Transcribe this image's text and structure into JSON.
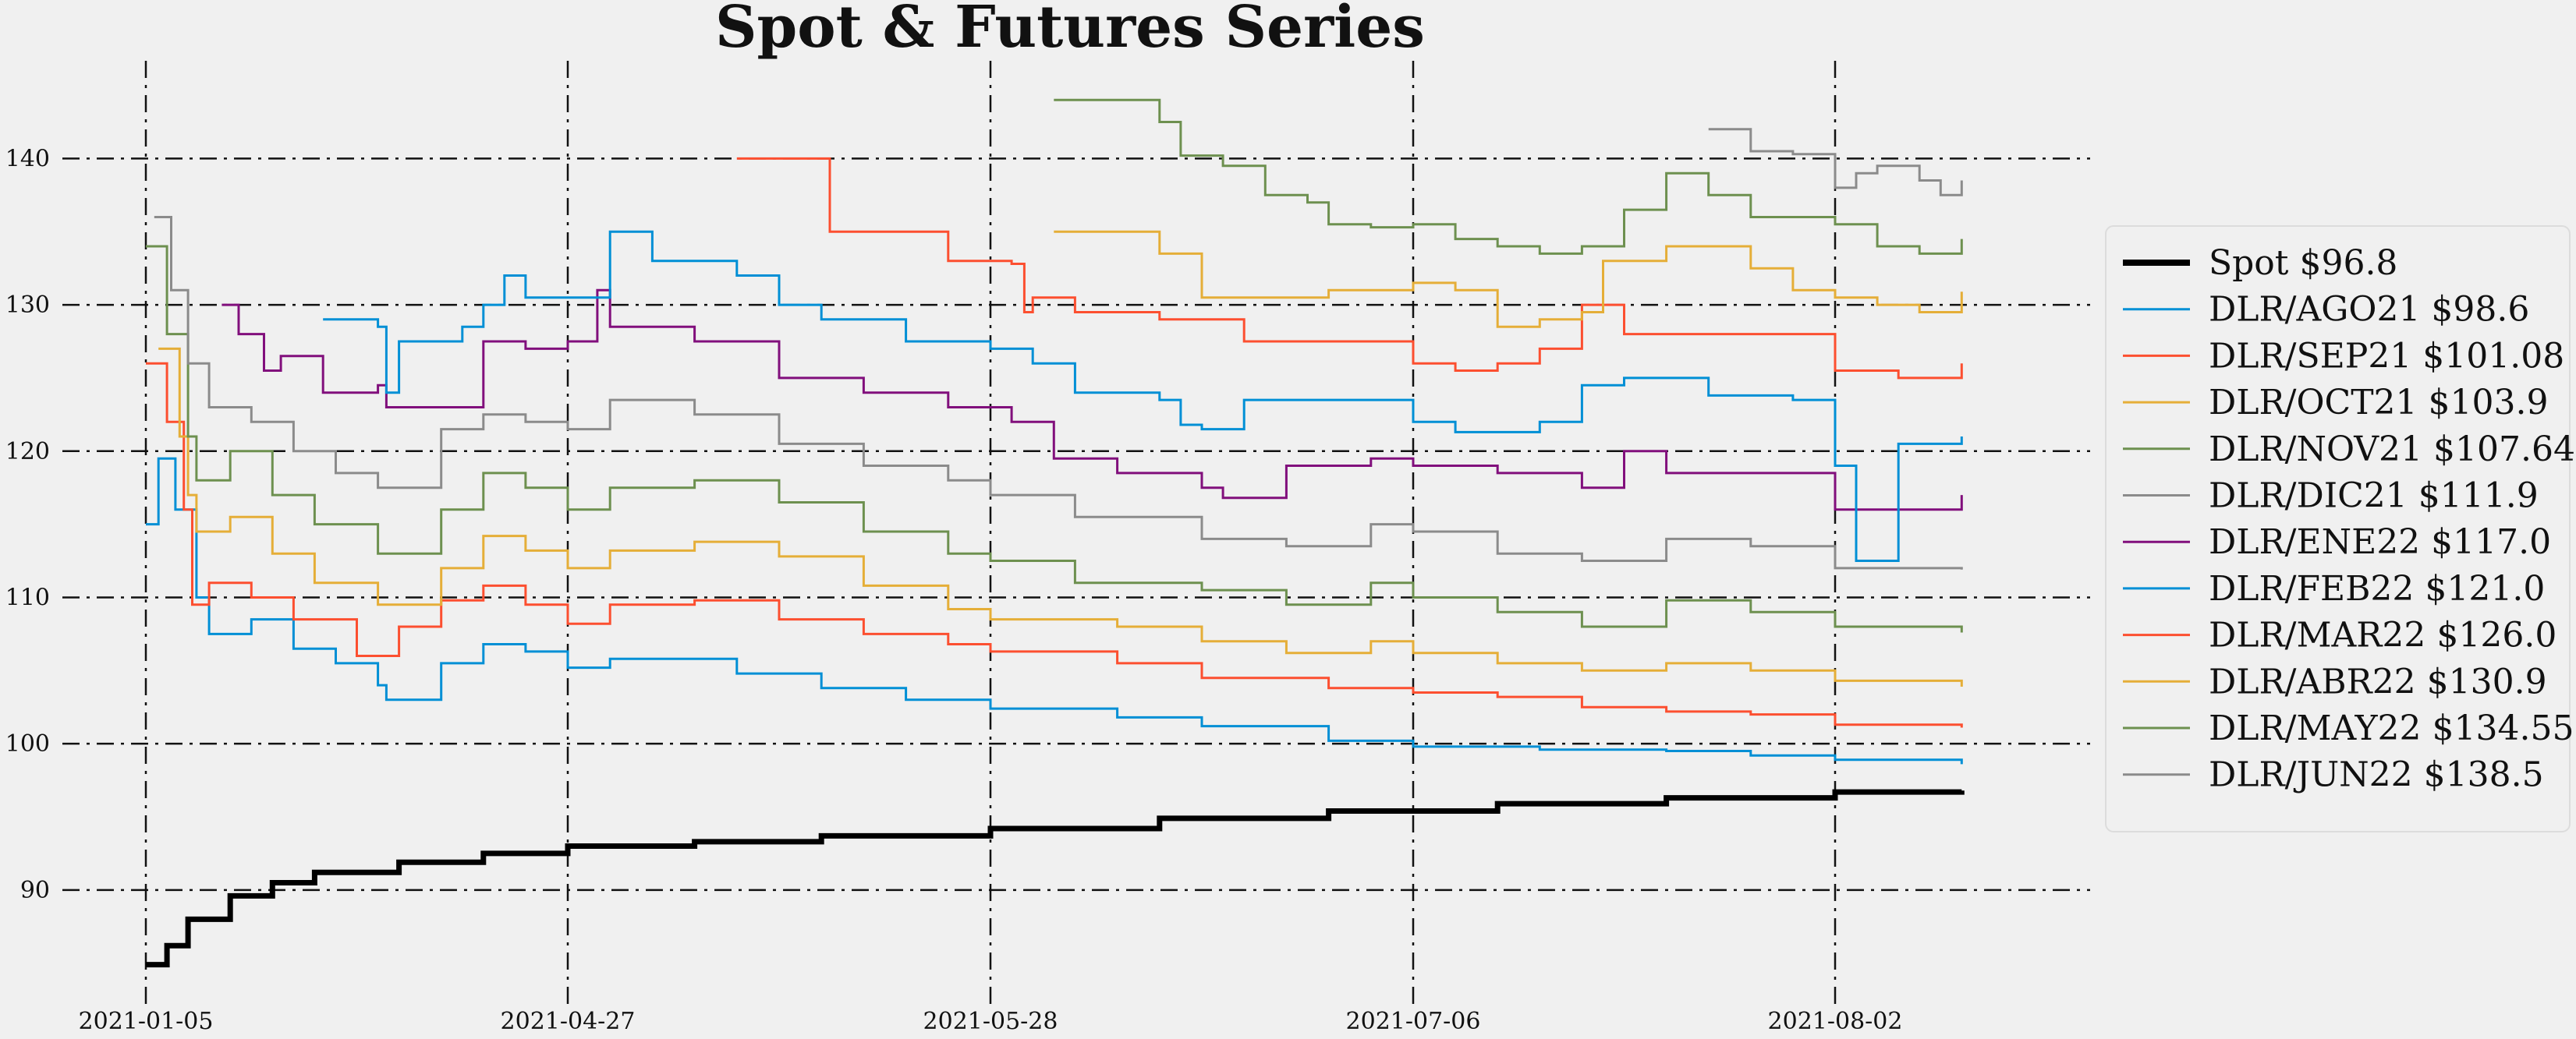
{
  "chart_data": {
    "type": "line",
    "title": "Spot & Futures Series",
    "xlabel": "",
    "ylabel": "",
    "x_ticks": [
      "2021-01-05",
      "2021-04-27",
      "2021-05-28",
      "2021-07-06",
      "2021-08-02"
    ],
    "y_ticks": [
      90,
      100,
      110,
      120,
      130,
      140
    ],
    "ylim": [
      82,
      147
    ],
    "x_domain": [
      0,
      4.35
    ],
    "grid": true,
    "legend_position": "right",
    "series": [
      {
        "name": "Spot $96.8",
        "color": "#000000",
        "bold": true,
        "points": [
          [
            0,
            84.9
          ],
          [
            0.05,
            86.2
          ],
          [
            0.1,
            88.0
          ],
          [
            0.2,
            89.6
          ],
          [
            0.3,
            90.5
          ],
          [
            0.4,
            91.2
          ],
          [
            0.6,
            91.9
          ],
          [
            0.8,
            92.5
          ],
          [
            1.0,
            93.0
          ],
          [
            1.3,
            93.3
          ],
          [
            1.6,
            93.7
          ],
          [
            2.0,
            94.2
          ],
          [
            2.4,
            94.9
          ],
          [
            2.8,
            95.4
          ],
          [
            3.2,
            95.9
          ],
          [
            3.6,
            96.3
          ],
          [
            4.0,
            96.7
          ],
          [
            4.3,
            96.8
          ]
        ]
      },
      {
        "name": "DLR/AGO21 $98.6",
        "color": "#008fd5",
        "points": [
          [
            0,
            115
          ],
          [
            0.03,
            119.5
          ],
          [
            0.07,
            116
          ],
          [
            0.12,
            110
          ],
          [
            0.15,
            107.5
          ],
          [
            0.25,
            108.5
          ],
          [
            0.35,
            106.5
          ],
          [
            0.45,
            105.5
          ],
          [
            0.55,
            104
          ],
          [
            0.57,
            103
          ],
          [
            0.7,
            105.5
          ],
          [
            0.8,
            106.8
          ],
          [
            0.9,
            106.3
          ],
          [
            1.0,
            105.2
          ],
          [
            1.1,
            105.8
          ],
          [
            1.4,
            104.8
          ],
          [
            1.6,
            103.8
          ],
          [
            1.8,
            103.0
          ],
          [
            2.0,
            102.4
          ],
          [
            2.3,
            101.8
          ],
          [
            2.5,
            101.2
          ],
          [
            2.8,
            100.2
          ],
          [
            3.0,
            99.8
          ],
          [
            3.3,
            99.6
          ],
          [
            3.6,
            99.5
          ],
          [
            3.8,
            99.2
          ],
          [
            4.0,
            98.9
          ],
          [
            4.3,
            98.6
          ]
        ]
      },
      {
        "name": "DLR/SEP21 $101.08",
        "color": "#fc4f30",
        "points": [
          [
            0,
            126
          ],
          [
            0.05,
            122
          ],
          [
            0.09,
            116
          ],
          [
            0.11,
            109.5
          ],
          [
            0.15,
            111
          ],
          [
            0.25,
            110
          ],
          [
            0.35,
            108.5
          ],
          [
            0.5,
            106
          ],
          [
            0.6,
            108
          ],
          [
            0.7,
            109.8
          ],
          [
            0.8,
            110.8
          ],
          [
            0.9,
            109.5
          ],
          [
            1.0,
            108.2
          ],
          [
            1.1,
            109.5
          ],
          [
            1.3,
            109.8
          ],
          [
            1.5,
            108.5
          ],
          [
            1.7,
            107.5
          ],
          [
            1.9,
            106.8
          ],
          [
            2.0,
            106.3
          ],
          [
            2.3,
            105.5
          ],
          [
            2.5,
            104.5
          ],
          [
            2.8,
            103.8
          ],
          [
            3.0,
            103.5
          ],
          [
            3.2,
            103.2
          ],
          [
            3.4,
            102.5
          ],
          [
            3.6,
            102.2
          ],
          [
            3.8,
            102.0
          ],
          [
            4.0,
            101.3
          ],
          [
            4.3,
            101.1
          ]
        ]
      },
      {
        "name": "DLR/OCT21 $103.9",
        "color": "#e5ae38",
        "points": [
          [
            0.03,
            127
          ],
          [
            0.08,
            121
          ],
          [
            0.1,
            117
          ],
          [
            0.12,
            114.5
          ],
          [
            0.2,
            115.5
          ],
          [
            0.3,
            113
          ],
          [
            0.4,
            111
          ],
          [
            0.55,
            109.5
          ],
          [
            0.7,
            112
          ],
          [
            0.8,
            114.2
          ],
          [
            0.9,
            113.2
          ],
          [
            1.0,
            112.0
          ],
          [
            1.1,
            113.2
          ],
          [
            1.3,
            113.8
          ],
          [
            1.5,
            112.8
          ],
          [
            1.7,
            110.8
          ],
          [
            1.9,
            109.2
          ],
          [
            2.0,
            108.5
          ],
          [
            2.3,
            108.0
          ],
          [
            2.5,
            107.0
          ],
          [
            2.7,
            106.2
          ],
          [
            2.9,
            107.0
          ],
          [
            3.0,
            106.2
          ],
          [
            3.2,
            105.5
          ],
          [
            3.4,
            105.0
          ],
          [
            3.6,
            105.5
          ],
          [
            3.8,
            105.0
          ],
          [
            4.0,
            104.3
          ],
          [
            4.3,
            103.9
          ]
        ]
      },
      {
        "name": "DLR/NOV21 $107.64",
        "color": "#6d904f",
        "points": [
          [
            0.0,
            134
          ],
          [
            0.05,
            128
          ],
          [
            0.1,
            121
          ],
          [
            0.12,
            118
          ],
          [
            0.2,
            120
          ],
          [
            0.3,
            117
          ],
          [
            0.4,
            115
          ],
          [
            0.55,
            113
          ],
          [
            0.7,
            116
          ],
          [
            0.8,
            118.5
          ],
          [
            0.9,
            117.5
          ],
          [
            1.0,
            116
          ],
          [
            1.1,
            117.5
          ],
          [
            1.3,
            118
          ],
          [
            1.5,
            116.5
          ],
          [
            1.7,
            114.5
          ],
          [
            1.9,
            113
          ],
          [
            2.0,
            112.5
          ],
          [
            2.2,
            111
          ],
          [
            2.5,
            110.5
          ],
          [
            2.7,
            109.5
          ],
          [
            2.9,
            111
          ],
          [
            3.0,
            110
          ],
          [
            3.2,
            109
          ],
          [
            3.4,
            108
          ],
          [
            3.6,
            109.8
          ],
          [
            3.8,
            109
          ],
          [
            4.0,
            108
          ],
          [
            4.3,
            107.6
          ]
        ]
      },
      {
        "name": "DLR/DIC21 $111.9",
        "color": "#8b8b8b",
        "points": [
          [
            0.02,
            136
          ],
          [
            0.06,
            131
          ],
          [
            0.1,
            126
          ],
          [
            0.15,
            123
          ],
          [
            0.25,
            122
          ],
          [
            0.35,
            120
          ],
          [
            0.45,
            118.5
          ],
          [
            0.55,
            117.5
          ],
          [
            0.7,
            121.5
          ],
          [
            0.8,
            122.5
          ],
          [
            0.9,
            122
          ],
          [
            1.0,
            121.5
          ],
          [
            1.1,
            123.5
          ],
          [
            1.3,
            122.5
          ],
          [
            1.5,
            120.5
          ],
          [
            1.7,
            119
          ],
          [
            1.9,
            118
          ],
          [
            2.0,
            117
          ],
          [
            2.2,
            115.5
          ],
          [
            2.5,
            114
          ],
          [
            2.7,
            113.5
          ],
          [
            2.9,
            115
          ],
          [
            3.0,
            114.5
          ],
          [
            3.2,
            113
          ],
          [
            3.4,
            112.5
          ],
          [
            3.6,
            114
          ],
          [
            3.8,
            113.5
          ],
          [
            4.0,
            112
          ],
          [
            4.3,
            111.9
          ]
        ]
      },
      {
        "name": "DLR/ENE22 $117.0",
        "color": "#810f7c",
        "points": [
          [
            0.18,
            130
          ],
          [
            0.22,
            128
          ],
          [
            0.28,
            125.5
          ],
          [
            0.32,
            126.5
          ],
          [
            0.42,
            124
          ],
          [
            0.55,
            124.5
          ],
          [
            0.57,
            123
          ],
          [
            0.8,
            127.5
          ],
          [
            0.9,
            127
          ],
          [
            1.0,
            127.5
          ],
          [
            1.07,
            131
          ],
          [
            1.1,
            128.5
          ],
          [
            1.3,
            127.5
          ],
          [
            1.5,
            125
          ],
          [
            1.7,
            124
          ],
          [
            1.9,
            123
          ],
          [
            2.05,
            122
          ],
          [
            2.15,
            119.5
          ],
          [
            2.3,
            118.5
          ],
          [
            2.5,
            117.5
          ],
          [
            2.55,
            116.8
          ],
          [
            2.7,
            119
          ],
          [
            2.9,
            119.5
          ],
          [
            3.0,
            119
          ],
          [
            3.2,
            118.5
          ],
          [
            3.4,
            117.5
          ],
          [
            3.5,
            120
          ],
          [
            3.6,
            118.5
          ],
          [
            3.8,
            118.5
          ],
          [
            4.0,
            116
          ],
          [
            4.3,
            117.0
          ]
        ]
      },
      {
        "name": "DLR/FEB22 $121.0",
        "color": "#008fd5",
        "points": [
          [
            0.42,
            129
          ],
          [
            0.55,
            128.5
          ],
          [
            0.57,
            124
          ],
          [
            0.6,
            127.5
          ],
          [
            0.75,
            128.5
          ],
          [
            0.8,
            130
          ],
          [
            0.85,
            132
          ],
          [
            0.9,
            130.5
          ],
          [
            1.0,
            130.5
          ],
          [
            1.1,
            135
          ],
          [
            1.2,
            133
          ],
          [
            1.4,
            132
          ],
          [
            1.5,
            130
          ],
          [
            1.6,
            129
          ],
          [
            1.8,
            127.5
          ],
          [
            2.0,
            127
          ],
          [
            2.1,
            126
          ],
          [
            2.2,
            124
          ],
          [
            2.4,
            123.5
          ],
          [
            2.45,
            121.8
          ],
          [
            2.5,
            121.5
          ],
          [
            2.6,
            123.5
          ],
          [
            2.8,
            123.5
          ],
          [
            3.0,
            122
          ],
          [
            3.1,
            121.3
          ],
          [
            3.3,
            122
          ],
          [
            3.4,
            124.5
          ],
          [
            3.5,
            125
          ],
          [
            3.7,
            123.8
          ],
          [
            3.9,
            123.5
          ],
          [
            4.0,
            119
          ],
          [
            4.05,
            112.5
          ],
          [
            4.15,
            120.5
          ],
          [
            4.3,
            121.0
          ]
        ]
      },
      {
        "name": "DLR/MAR22 $126.0",
        "color": "#fc4f30",
        "points": [
          [
            1.4,
            140
          ],
          [
            1.6,
            140
          ],
          [
            1.62,
            135
          ],
          [
            1.8,
            135
          ],
          [
            1.9,
            133
          ],
          [
            2.05,
            132.8
          ],
          [
            2.08,
            129.5
          ],
          [
            2.1,
            130.5
          ],
          [
            2.2,
            129.5
          ],
          [
            2.4,
            129
          ],
          [
            2.6,
            127.5
          ],
          [
            2.8,
            127.5
          ],
          [
            3.0,
            126
          ],
          [
            3.1,
            125.5
          ],
          [
            3.2,
            126
          ],
          [
            3.3,
            127
          ],
          [
            3.4,
            130
          ],
          [
            3.5,
            128
          ],
          [
            3.7,
            128
          ],
          [
            3.85,
            128
          ],
          [
            4.0,
            125.5
          ],
          [
            4.15,
            125
          ],
          [
            4.3,
            126.0
          ]
        ]
      },
      {
        "name": "DLR/ABR22 $130.9",
        "color": "#e5ae38",
        "points": [
          [
            2.15,
            135
          ],
          [
            2.3,
            135
          ],
          [
            2.4,
            133.5
          ],
          [
            2.5,
            130.5
          ],
          [
            2.6,
            130.5
          ],
          [
            2.8,
            131
          ],
          [
            3.0,
            131.5
          ],
          [
            3.1,
            131
          ],
          [
            3.2,
            128.5
          ],
          [
            3.3,
            129
          ],
          [
            3.4,
            129.5
          ],
          [
            3.45,
            133
          ],
          [
            3.6,
            134
          ],
          [
            3.8,
            132.5
          ],
          [
            3.9,
            131
          ],
          [
            4.0,
            130.5
          ],
          [
            4.1,
            130
          ],
          [
            4.2,
            129.5
          ],
          [
            4.3,
            130.9
          ]
        ]
      },
      {
        "name": "DLR/MAY22 $134.55",
        "color": "#6d904f",
        "points": [
          [
            2.15,
            144
          ],
          [
            2.35,
            144
          ],
          [
            2.4,
            142.5
          ],
          [
            2.45,
            140.2
          ],
          [
            2.55,
            139.5
          ],
          [
            2.65,
            137.5
          ],
          [
            2.75,
            137
          ],
          [
            2.8,
            135.5
          ],
          [
            2.9,
            135.3
          ],
          [
            3.0,
            135.5
          ],
          [
            3.1,
            134.5
          ],
          [
            3.2,
            134
          ],
          [
            3.3,
            133.5
          ],
          [
            3.4,
            134
          ],
          [
            3.5,
            136.5
          ],
          [
            3.6,
            139
          ],
          [
            3.7,
            137.5
          ],
          [
            3.8,
            136
          ],
          [
            4.0,
            135.5
          ],
          [
            4.1,
            134
          ],
          [
            4.2,
            133.5
          ],
          [
            4.3,
            134.5
          ]
        ]
      },
      {
        "name": "DLR/JUN22 $138.5",
        "color": "#8b8b8b",
        "points": [
          [
            3.7,
            142
          ],
          [
            3.78,
            142
          ],
          [
            3.8,
            140.5
          ],
          [
            3.9,
            140.3
          ],
          [
            4.0,
            138
          ],
          [
            4.05,
            139
          ],
          [
            4.1,
            139.5
          ],
          [
            4.2,
            138.5
          ],
          [
            4.25,
            137.5
          ],
          [
            4.3,
            138.5
          ]
        ]
      }
    ]
  }
}
